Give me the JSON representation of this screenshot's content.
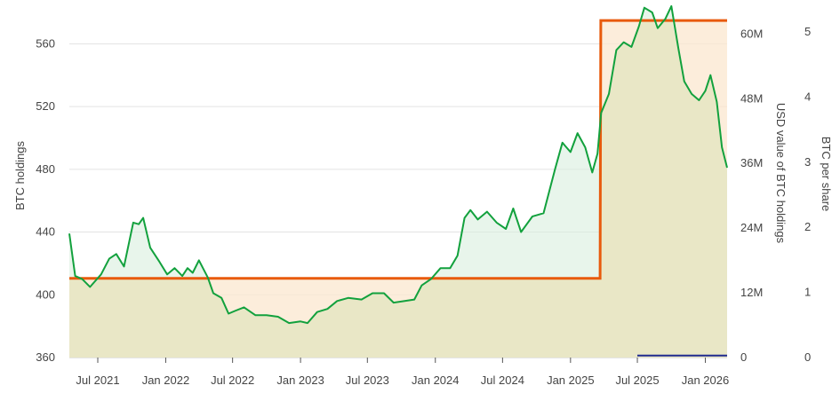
{
  "colors": {
    "holdings_line": "#12a13d",
    "usd_value_line": "#e85a0c",
    "btc_per_share_line": "#1f2a8f",
    "grid": "#e3e3e3",
    "area_fill": "#e9e7c6",
    "holdings_fill": "#d9eede",
    "orange_fill": "#fbe7cf",
    "text": "#444444"
  },
  "chart_data": {
    "type": "line",
    "title": "",
    "x_ticks": [
      "Jul 2021",
      "Jan 2022",
      "Jul 2022",
      "Jan 2023",
      "Jul 2023",
      "Jan 2024",
      "Jul 2024",
      "Jan 2025",
      "Jul 2025",
      "Jan 2026"
    ],
    "y_left": {
      "label": "BTC holdings",
      "ticks": [
        "360",
        "400",
        "440",
        "480",
        "520",
        "560"
      ],
      "range": [
        360,
        580
      ]
    },
    "y_right_1": {
      "label": "USD value of BTC holdings",
      "ticks": [
        "0",
        "12M",
        "24M",
        "36M",
        "48M",
        "60M"
      ],
      "range": [
        0,
        64
      ]
    },
    "y_right_2": {
      "label": "BTC per share",
      "ticks": [
        "0",
        "1",
        "2",
        "3",
        "4",
        "5"
      ],
      "range": [
        0,
        5.3
      ]
    },
    "grid": true,
    "series": [
      {
        "name": "BTC holdings",
        "axis": "left",
        "points": [
          [
            "2021-04-15",
            439
          ],
          [
            "2021-05-01",
            412
          ],
          [
            "2021-05-20",
            410
          ],
          [
            "2021-06-10",
            405
          ],
          [
            "2021-07-10",
            413
          ],
          [
            "2021-08-01",
            423
          ],
          [
            "2021-08-20",
            426
          ],
          [
            "2021-09-10",
            418
          ],
          [
            "2021-10-05",
            446
          ],
          [
            "2021-10-20",
            445
          ],
          [
            "2021-11-01",
            449
          ],
          [
            "2021-11-20",
            430
          ],
          [
            "2021-12-15",
            421
          ],
          [
            "2022-01-05",
            413
          ],
          [
            "2022-01-25",
            417
          ],
          [
            "2022-02-15",
            412
          ],
          [
            "2022-03-01",
            417
          ],
          [
            "2022-03-15",
            414
          ],
          [
            "2022-04-01",
            422
          ],
          [
            "2022-04-25",
            411
          ],
          [
            "2022-05-10",
            401
          ],
          [
            "2022-06-01",
            398
          ],
          [
            "2022-06-20",
            388
          ],
          [
            "2022-07-10",
            390
          ],
          [
            "2022-08-01",
            392
          ],
          [
            "2022-09-01",
            387
          ],
          [
            "2022-10-01",
            387
          ],
          [
            "2022-11-01",
            386
          ],
          [
            "2022-12-01",
            382
          ],
          [
            "2023-01-01",
            383
          ],
          [
            "2023-01-20",
            382
          ],
          [
            "2023-02-15",
            389
          ],
          [
            "2023-03-15",
            391
          ],
          [
            "2023-04-10",
            396
          ],
          [
            "2023-05-10",
            398
          ],
          [
            "2023-06-15",
            397
          ],
          [
            "2023-07-15",
            401
          ],
          [
            "2023-08-15",
            401
          ],
          [
            "2023-09-10",
            395
          ],
          [
            "2023-10-10",
            396
          ],
          [
            "2023-11-05",
            397
          ],
          [
            "2023-11-25",
            406
          ],
          [
            "2023-12-20",
            410
          ],
          [
            "2024-01-15",
            417
          ],
          [
            "2024-02-10",
            417
          ],
          [
            "2024-03-01",
            425
          ],
          [
            "2024-03-20",
            449
          ],
          [
            "2024-04-05",
            454
          ],
          [
            "2024-04-25",
            448
          ],
          [
            "2024-05-20",
            453
          ],
          [
            "2024-06-15",
            446
          ],
          [
            "2024-07-10",
            442
          ],
          [
            "2024-07-30",
            455
          ],
          [
            "2024-08-20",
            440
          ],
          [
            "2024-09-20",
            450
          ],
          [
            "2024-10-20",
            452
          ],
          [
            "2024-11-20",
            480
          ],
          [
            "2024-12-10",
            497
          ],
          [
            "2025-01-01",
            491
          ],
          [
            "2025-01-20",
            503
          ],
          [
            "2025-02-10",
            494
          ],
          [
            "2025-03-01",
            478
          ],
          [
            "2025-03-15",
            490
          ],
          [
            "2025-03-25",
            516
          ],
          [
            "2025-04-15",
            528
          ],
          [
            "2025-05-05",
            556
          ],
          [
            "2025-05-25",
            561
          ],
          [
            "2025-06-15",
            558
          ],
          [
            "2025-07-05",
            571
          ],
          [
            "2025-07-20",
            583
          ],
          [
            "2025-08-10",
            580
          ],
          [
            "2025-08-25",
            570
          ],
          [
            "2025-09-15",
            576
          ],
          [
            "2025-10-01",
            584
          ],
          [
            "2025-10-20",
            557
          ],
          [
            "2025-11-05",
            536
          ],
          [
            "2025-11-25",
            528
          ],
          [
            "2025-12-15",
            524
          ],
          [
            "2026-01-01",
            530
          ],
          [
            "2026-01-15",
            540
          ],
          [
            "2026-02-01",
            523
          ],
          [
            "2026-02-15",
            494
          ],
          [
            "2026-03-01",
            481
          ]
        ]
      },
      {
        "name": "USD value of BTC holdings",
        "axis": "right_1",
        "points": [
          [
            "2021-04-15",
            14.7
          ],
          [
            "2025-03-22",
            14.7
          ],
          [
            "2025-03-24",
            62.5
          ],
          [
            "2026-03-01",
            62.5
          ]
        ]
      },
      {
        "name": "BTC per share",
        "axis": "right_2",
        "points": [
          [
            "2025-07-01",
            0.03
          ],
          [
            "2026-03-01",
            0.03
          ]
        ]
      }
    ]
  }
}
